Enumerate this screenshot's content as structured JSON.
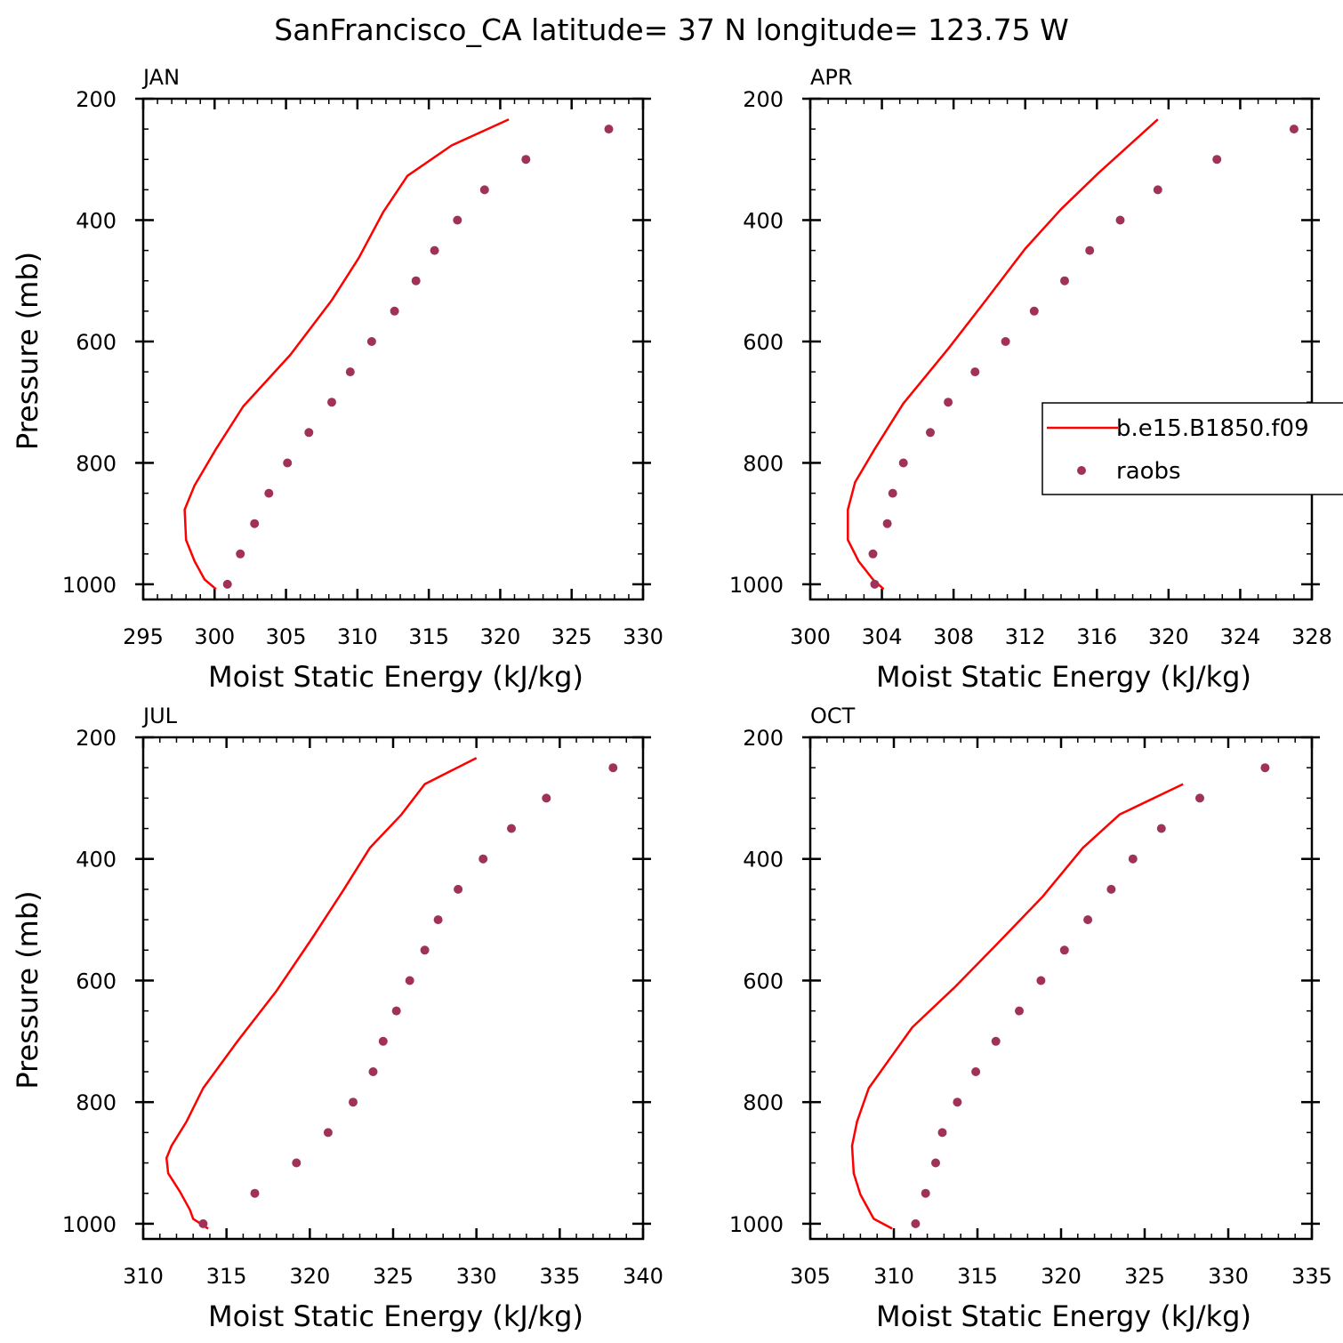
{
  "title": "SanFrancisco_CA  latitude= 37 N longitude= 123.75 W",
  "colors": {
    "model": "#ff0000",
    "obs": "#a0325a",
    "axis": "#000000"
  },
  "legend": {
    "placement": "right",
    "entries": [
      "b.e15.B1850.f09",
      "raobs"
    ]
  },
  "chart_data": [
    {
      "type": "line",
      "panel_label": "JAN",
      "xlabel": "Moist Static Energy (kJ/kg)",
      "ylabel": "Pressure (mb)",
      "xlim": [
        295,
        330
      ],
      "xticks": [
        295,
        300,
        305,
        310,
        315,
        320,
        325,
        330
      ],
      "xminor": 1,
      "ylim": [
        1025,
        200
      ],
      "yticks": [
        200,
        400,
        600,
        800,
        1000
      ],
      "yminor": 50,
      "yreversed": true,
      "grid": false,
      "series": [
        {
          "name": "b.e15.B1850.f09",
          "kind": "line",
          "x": [
            300.1,
            299.3,
            298.6,
            298.0,
            297.9,
            298.6,
            300.1,
            302.0,
            305.3,
            308.2,
            310.1,
            311.8,
            313.5,
            316.6,
            320.6
          ],
          "y": [
            1008,
            992,
            962,
            927,
            877,
            837,
            777,
            707,
            622,
            532,
            462,
            387,
            327,
            277,
            234
          ]
        },
        {
          "name": "raobs",
          "kind": "scatter",
          "x": [
            300.9,
            301.8,
            302.8,
            303.8,
            305.1,
            306.6,
            308.2,
            309.5,
            311.0,
            312.6,
            314.1,
            315.4,
            317.0,
            318.9,
            321.8,
            327.6
          ],
          "y": [
            1000,
            950,
            900,
            850,
            800,
            750,
            700,
            650,
            600,
            550,
            500,
            450,
            400,
            350,
            300,
            250
          ]
        }
      ]
    },
    {
      "type": "line",
      "panel_label": "APR",
      "xlabel": "Moist Static Energy (kJ/kg)",
      "ylabel": "",
      "xlim": [
        300,
        328
      ],
      "xticks": [
        300,
        304,
        308,
        312,
        316,
        320,
        324,
        328
      ],
      "xminor": 1,
      "ylim": [
        1025,
        200
      ],
      "yticks": [
        200,
        400,
        600,
        800,
        1000
      ],
      "yminor": 50,
      "yreversed": true,
      "grid": false,
      "series": [
        {
          "name": "b.e15.B1850.f09",
          "kind": "line",
          "x": [
            304.1,
            303.5,
            302.7,
            302.1,
            302.1,
            302.5,
            303.6,
            305.2,
            307.7,
            309.8,
            312.0,
            314.0,
            316.1,
            319.4
          ],
          "y": [
            1008,
            992,
            962,
            927,
            877,
            832,
            777,
            702,
            612,
            532,
            447,
            382,
            322,
            234
          ]
        },
        {
          "name": "raobs",
          "kind": "scatter",
          "x": [
            303.6,
            303.5,
            304.3,
            304.6,
            305.2,
            306.7,
            307.7,
            309.2,
            310.9,
            312.5,
            314.2,
            315.6,
            317.3,
            319.4,
            322.7,
            327.0
          ],
          "y": [
            1000,
            950,
            900,
            850,
            800,
            750,
            700,
            650,
            600,
            550,
            500,
            450,
            400,
            350,
            300,
            250
          ]
        }
      ]
    },
    {
      "type": "line",
      "panel_label": "JUL",
      "xlabel": "Moist Static Energy (kJ/kg)",
      "ylabel": "Pressure (mb)",
      "xlim": [
        310,
        340
      ],
      "xticks": [
        310,
        315,
        320,
        325,
        330,
        335,
        340
      ],
      "xminor": 1,
      "ylim": [
        1025,
        200
      ],
      "yticks": [
        200,
        400,
        600,
        800,
        1000
      ],
      "yminor": 50,
      "yreversed": true,
      "grid": false,
      "series": [
        {
          "name": "b.e15.B1850.f09",
          "kind": "line",
          "x": [
            313.9,
            313.0,
            312.8,
            312.2,
            311.5,
            311.4,
            311.7,
            312.6,
            313.6,
            315.6,
            318.0,
            320.1,
            322.0,
            323.6,
            325.5,
            326.9,
            330.0
          ],
          "y": [
            1008,
            992,
            977,
            947,
            917,
            892,
            872,
            832,
            777,
            702,
            617,
            532,
            452,
            382,
            327,
            277,
            234
          ]
        },
        {
          "name": "raobs",
          "kind": "scatter",
          "x": [
            313.6,
            316.7,
            319.2,
            321.1,
            322.6,
            323.8,
            324.4,
            325.2,
            326.0,
            326.9,
            327.7,
            328.9,
            330.4,
            332.1,
            334.2,
            338.2
          ],
          "y": [
            1000,
            950,
            900,
            850,
            800,
            750,
            700,
            650,
            600,
            550,
            500,
            450,
            400,
            350,
            300,
            250
          ]
        }
      ]
    },
    {
      "type": "line",
      "panel_label": "OCT",
      "xlabel": "Moist Static Energy (kJ/kg)",
      "ylabel": "",
      "xlim": [
        305,
        335
      ],
      "xticks": [
        305,
        310,
        315,
        320,
        325,
        330,
        335
      ],
      "xminor": 1,
      "ylim": [
        1025,
        200
      ],
      "yticks": [
        200,
        400,
        600,
        800,
        1000
      ],
      "yminor": 50,
      "yreversed": true,
      "grid": false,
      "series": [
        {
          "name": "b.e15.B1850.f09",
          "kind": "line",
          "x": [
            309.9,
            308.8,
            308.0,
            307.6,
            307.5,
            307.8,
            308.5,
            311.1,
            313.6,
            316.1,
            318.9,
            321.3,
            323.5,
            327.3
          ],
          "y": [
            1008,
            992,
            952,
            917,
            872,
            832,
            777,
            677,
            612,
            542,
            462,
            382,
            327,
            277
          ]
        },
        {
          "name": "raobs",
          "kind": "scatter",
          "x": [
            311.3,
            311.9,
            312.5,
            312.9,
            313.8,
            314.9,
            316.1,
            317.5,
            318.8,
            320.2,
            321.6,
            323.0,
            324.3,
            326.0,
            328.3,
            332.2
          ],
          "y": [
            1000,
            950,
            900,
            850,
            800,
            750,
            700,
            650,
            600,
            550,
            500,
            450,
            400,
            350,
            300,
            250
          ]
        }
      ]
    }
  ]
}
